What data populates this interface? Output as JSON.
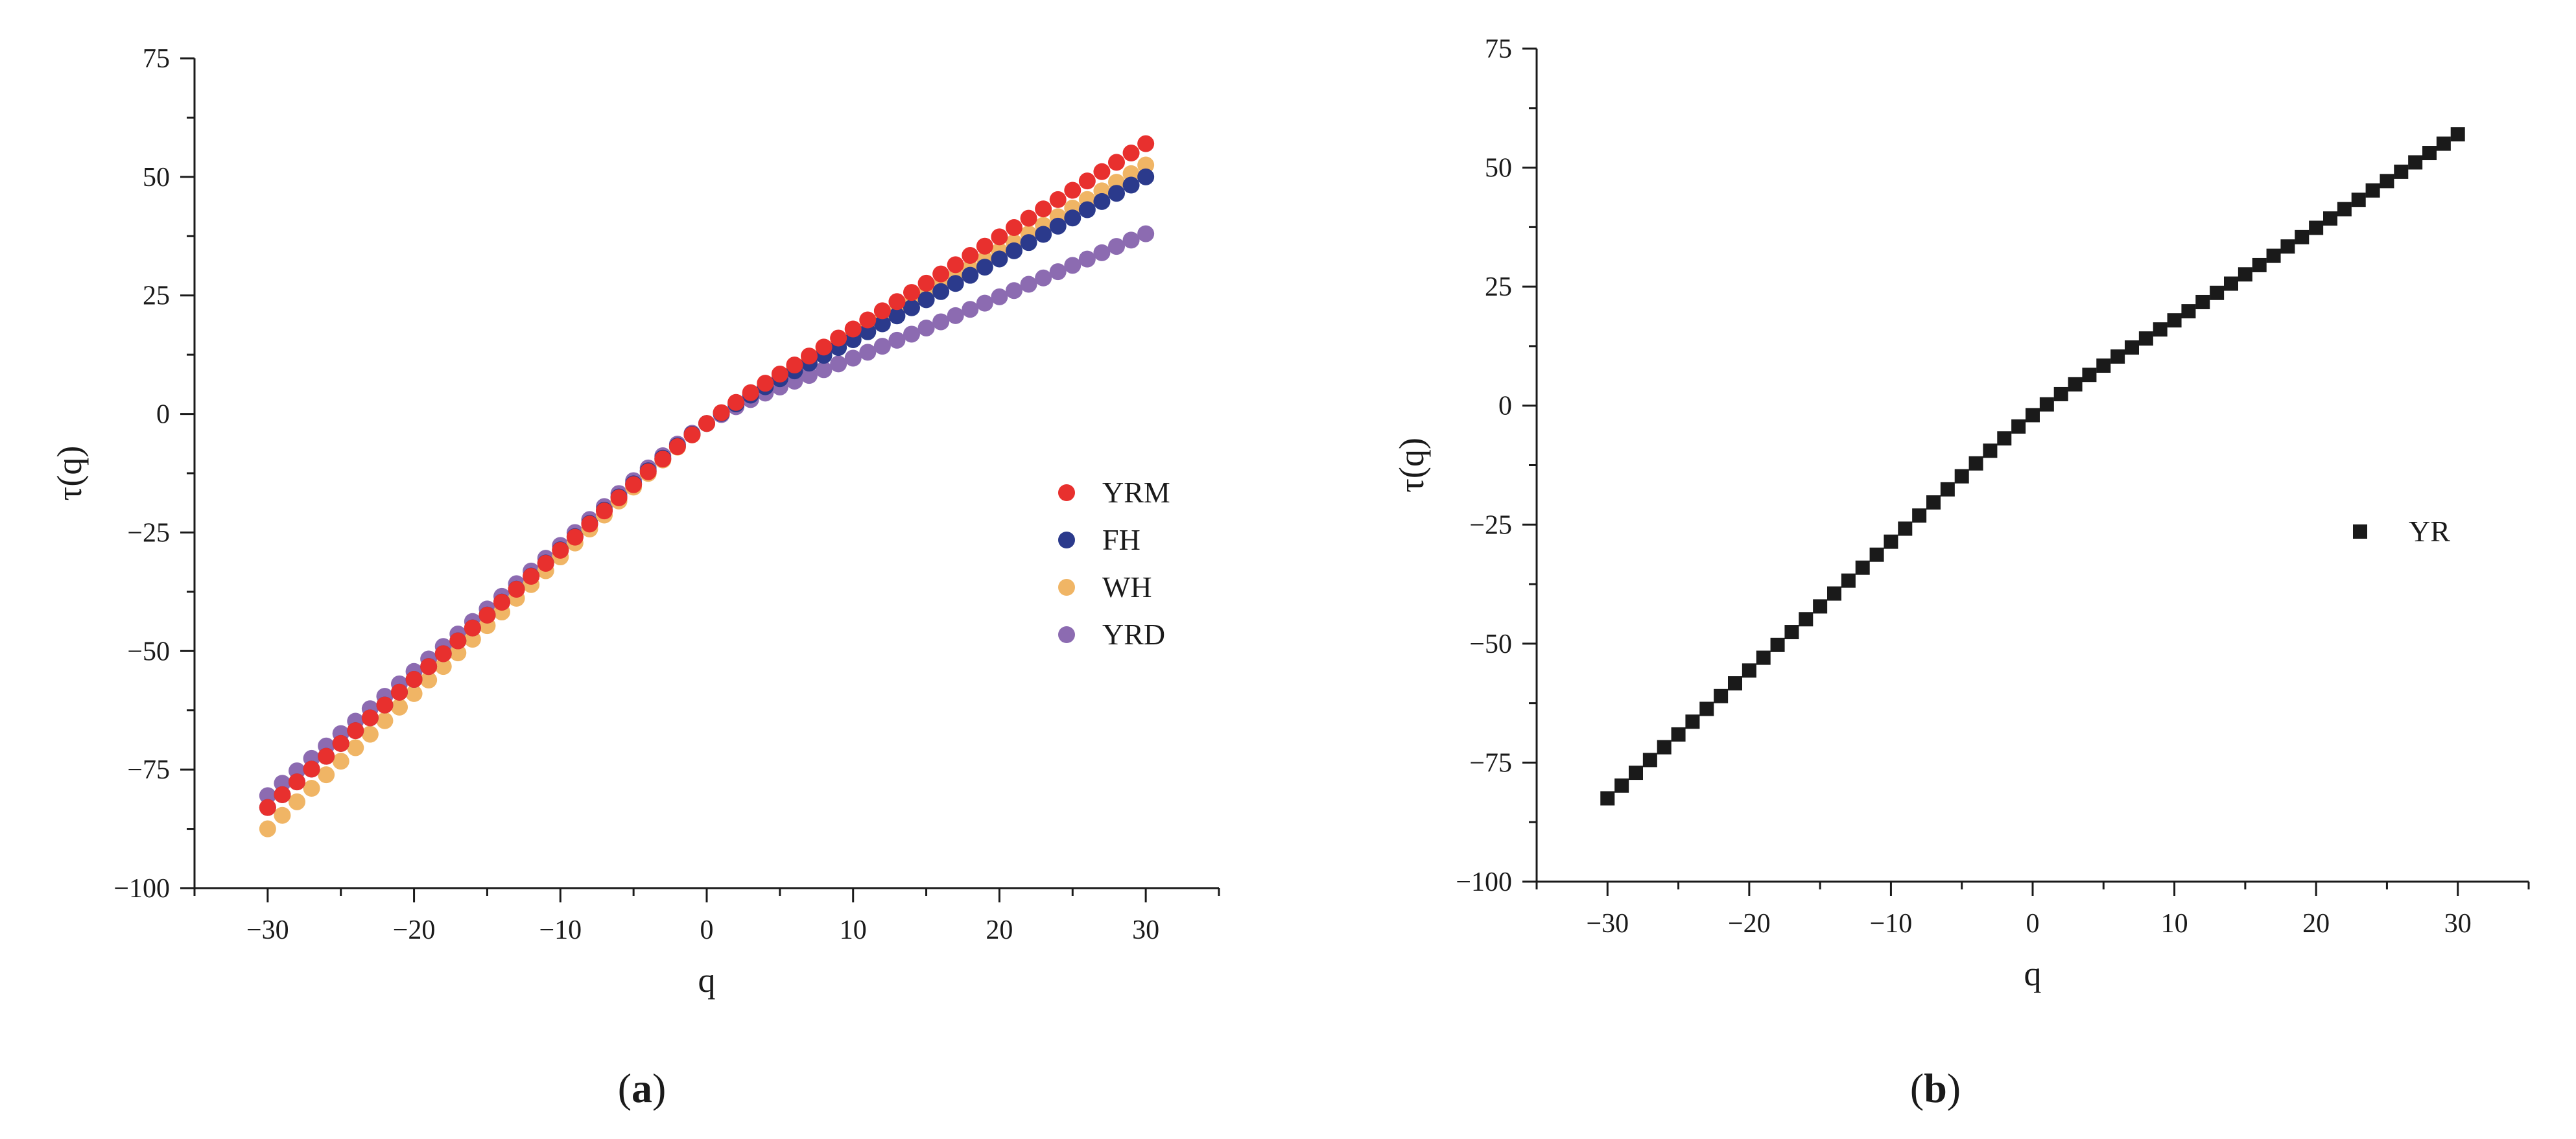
{
  "chart_data": [
    {
      "type": "scatter",
      "panel": "a",
      "caption": "(a)",
      "xlabel": "q",
      "ylabel": "τ(q)",
      "xlim": [
        -35,
        35
      ],
      "ylim": [
        -100,
        75
      ],
      "xticks": [
        -30,
        -20,
        -10,
        0,
        10,
        20,
        30
      ],
      "yticks": [
        -100,
        -75,
        -50,
        -25,
        0,
        25,
        50,
        75
      ],
      "grid": false,
      "legend_position": "right",
      "series": [
        {
          "name": "YRM",
          "color": "#e8302e",
          "marker": "circle",
          "tau_at_neg30": -83,
          "tau_at_pos30": 57
        },
        {
          "name": "FH",
          "color": "#2b3a8c",
          "marker": "circle",
          "tau_at_neg30": -83,
          "tau_at_pos30": 50
        },
        {
          "name": "WH",
          "color": "#f0b565",
          "marker": "circle",
          "tau_at_neg30": -87.5,
          "tau_at_pos30": 52.5
        },
        {
          "name": "YRD",
          "color": "#8c6bb1",
          "marker": "circle",
          "tau_at_neg30": -80.5,
          "tau_at_pos30": 38
        }
      ]
    },
    {
      "type": "scatter",
      "panel": "b",
      "caption": "(b)",
      "xlabel": "q",
      "ylabel": "τ(q)",
      "xlim": [
        -35,
        35
      ],
      "ylim": [
        -100,
        75
      ],
      "xticks": [
        -30,
        -20,
        -10,
        0,
        10,
        20,
        30
      ],
      "yticks": [
        -100,
        -75,
        -50,
        -25,
        0,
        25,
        50,
        75
      ],
      "grid": false,
      "legend_position": "right",
      "series": [
        {
          "name": "YR",
          "color": "#1a1a1a",
          "marker": "square",
          "tau_at_neg30": -82.5,
          "tau_at_pos30": 57
        }
      ]
    }
  ]
}
